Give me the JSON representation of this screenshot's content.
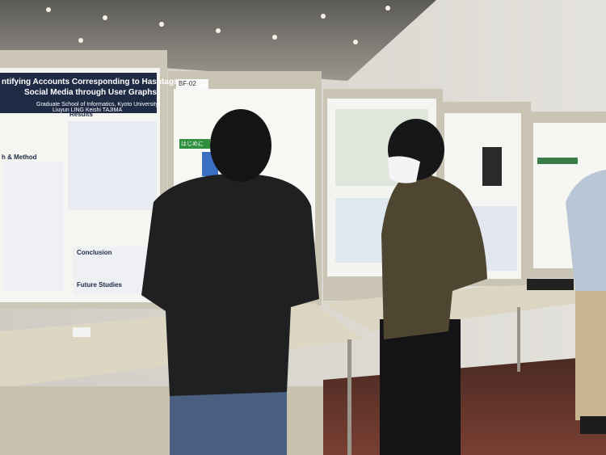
{
  "posters": [
    {
      "title": "ntifying Accounts Corresponding to Hashtags on Social Media through User Graphs",
      "affiliation": "Graduate School of Informatics, Kyoto University",
      "authors": "Liuyun LING  Keishi TAJIMA",
      "sections": [
        "h & Method",
        "Results",
        "Conclusion",
        "Future Studies"
      ]
    },
    {
      "label": "BF-02",
      "sections": [
        "はじめに"
      ]
    }
  ]
}
